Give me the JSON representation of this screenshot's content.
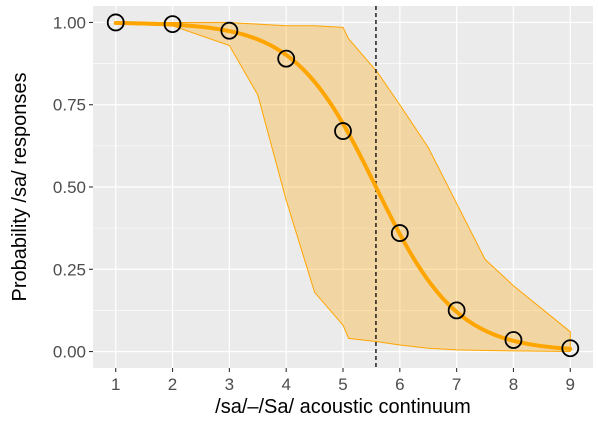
{
  "chart_data": {
    "type": "line",
    "title": "",
    "xlabel": "/sa/–/Sa/ acoustic continuum",
    "ylabel": "Probability /sa/ responses",
    "xlim": [
      0.6,
      9.4
    ],
    "ylim": [
      -0.05,
      1.05
    ],
    "x_ticks": [
      1,
      2,
      3,
      4,
      5,
      6,
      7,
      8,
      9
    ],
    "y_ticks": [
      0.0,
      0.25,
      0.5,
      0.75,
      1.0
    ],
    "y_tick_labels": [
      "0.00",
      "0.25",
      "0.50",
      "0.75",
      "1.00"
    ],
    "grid": true,
    "series": [
      {
        "kind": "observed-points",
        "x": [
          1,
          2,
          3,
          4,
          5,
          6,
          7,
          8,
          9
        ],
        "values": [
          1.0,
          0.995,
          0.975,
          0.89,
          0.67,
          0.36,
          0.125,
          0.035,
          0.01
        ]
      },
      {
        "kind": "fitted-curve",
        "midpoint": 5.58,
        "slope": 1.4
      },
      {
        "kind": "uncertainty-band",
        "x": [
          1,
          2,
          3,
          3.5,
          4,
          4.5,
          5,
          5.1,
          5.6,
          6,
          6.5,
          7,
          7.5,
          8,
          9
        ],
        "lower": [
          0.995,
          0.99,
          0.93,
          0.78,
          0.46,
          0.18,
          0.08,
          0.04,
          0.03,
          0.02,
          0.01,
          0.005,
          0.003,
          0.002,
          0.0
        ],
        "upper": [
          1.0,
          1.0,
          1.0,
          0.995,
          0.99,
          0.99,
          0.985,
          0.95,
          0.85,
          0.75,
          0.62,
          0.45,
          0.28,
          0.2,
          0.06
        ]
      }
    ],
    "reference_line": {
      "axis": "x",
      "value": 5.58,
      "style": "dashed"
    },
    "colors": {
      "panel": "#ebebeb",
      "grid_major": "#ffffff",
      "curve": "#ffa500",
      "band_fill": "#ffa500",
      "points": "#000000",
      "reference": "#000000"
    }
  }
}
